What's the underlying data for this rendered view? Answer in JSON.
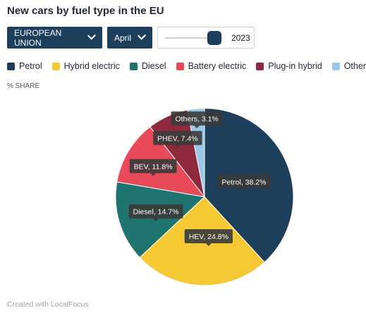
{
  "header": {
    "title": "New cars by fuel type in the EU"
  },
  "controls": {
    "region": "EUROPEAN UNION",
    "month": "April",
    "year": "2023",
    "year_slider_position": 0.85
  },
  "unit_label": "% SHARE",
  "footer": "Created with LocalFocus",
  "chart_data": {
    "type": "pie",
    "unit": "% SHARE",
    "categories": [
      "Petrol",
      "Hybrid electric",
      "Diesel",
      "Battery electric",
      "Plug-in hybrid",
      "Others"
    ],
    "short_labels": [
      "Petrol",
      "HEV",
      "Diesel",
      "BEV",
      "PHEV",
      "Others"
    ],
    "values": [
      38.2,
      24.8,
      14.7,
      11.8,
      7.4,
      3.1
    ],
    "value_labels": [
      "38.2%",
      "24.8%",
      "14.7%",
      "11.8%",
      "7.4%",
      "3.1%"
    ],
    "colors": [
      "#1d3f5c",
      "#f5c933",
      "#1f7470",
      "#e94a5a",
      "#8f2a3e",
      "#9cc8e8"
    ],
    "legend_position": "top"
  }
}
